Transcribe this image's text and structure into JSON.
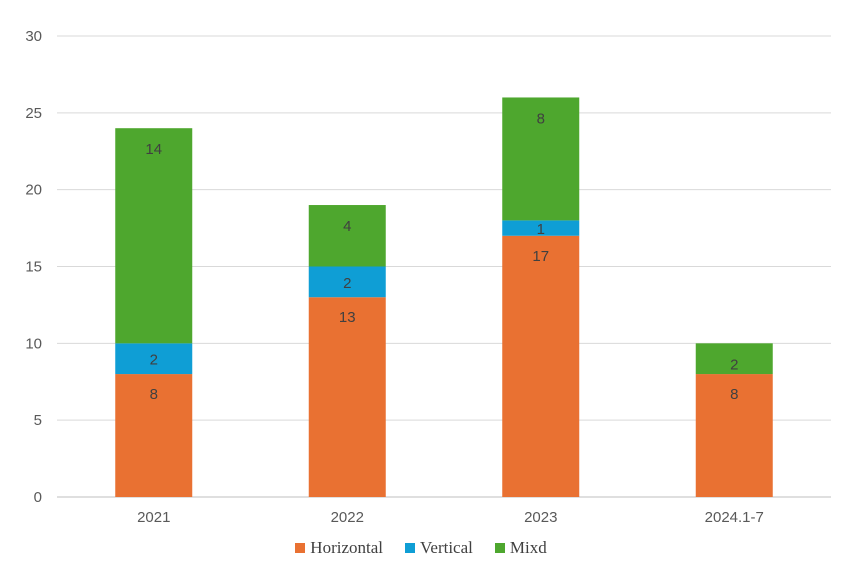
{
  "chart_data": {
    "type": "bar",
    "stacked": true,
    "categories": [
      "2021",
      "2022",
      "2023",
      "2024.1-7"
    ],
    "series": [
      {
        "name": "Horizontal",
        "color": "#E97132",
        "values": [
          8,
          13,
          17,
          8
        ]
      },
      {
        "name": "Vertical",
        "color": "#0F9ED5",
        "values": [
          2,
          2,
          1,
          0
        ]
      },
      {
        "name": "Mixd",
        "color": "#4EA72E",
        "values": [
          14,
          4,
          8,
          2
        ]
      }
    ],
    "y_ticks": [
      "0",
      "5",
      "10",
      "15",
      "20",
      "25",
      "30"
    ],
    "ylim": [
      0,
      30
    ],
    "grid": true,
    "legend_position": "bottom"
  }
}
